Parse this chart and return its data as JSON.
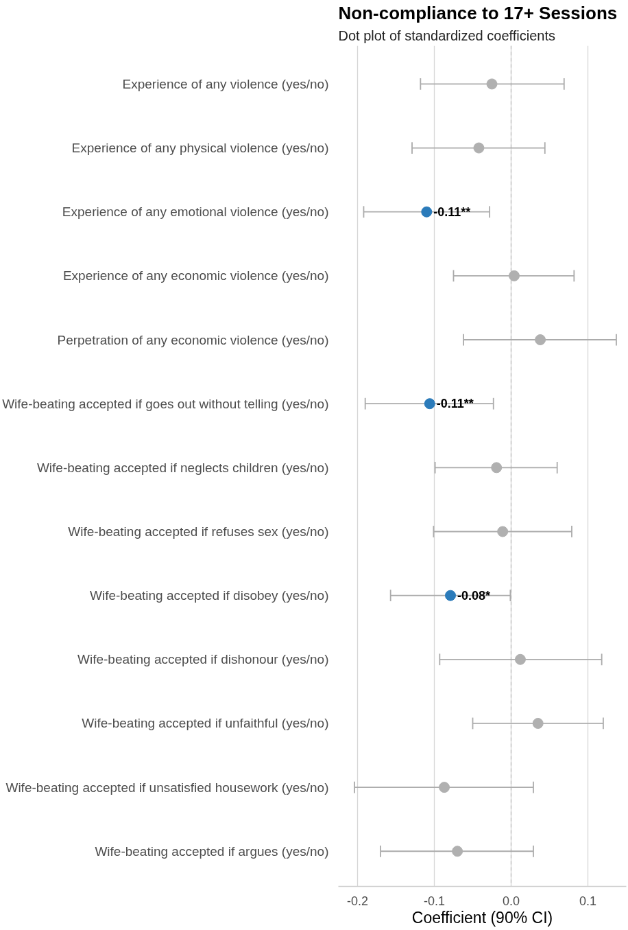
{
  "chart_data": {
    "type": "scatter",
    "orientation": "horizontal",
    "title": "Non-compliance to 17+ Sessions",
    "subtitle": "Dot plot of standardized coefficients",
    "xlabel": "Coefficient (90% CI)",
    "categories": [
      "Experience of any violence (yes/no)",
      "Experience of any physical violence (yes/no)",
      "Experience of any emotional violence (yes/no)",
      "Experience of any economic violence (yes/no)",
      "Perpetration of any economic violence (yes/no)",
      "Wife-beating accepted if goes out without telling (yes/no)",
      "Wife-beating accepted if neglects children (yes/no)",
      "Wife-beating accepted if refuses sex (yes/no)",
      "Wife-beating accepted if disobey (yes/no)",
      "Wife-beating accepted if dishonour (yes/no)",
      "Wife-beating accepted if unfaithful (yes/no)",
      "Wife-beating accepted if unsatisfied housework (yes/no)",
      "Wife-beating accepted if argues (yes/no)"
    ],
    "values": [
      -0.025,
      -0.042,
      -0.11,
      0.004,
      0.038,
      -0.106,
      -0.019,
      -0.011,
      -0.079,
      0.012,
      0.035,
      -0.087,
      -0.07
    ],
    "errors": [
      [
        -0.118,
        0.069
      ],
      [
        -0.129,
        0.044
      ],
      [
        -0.192,
        -0.028
      ],
      [
        -0.075,
        0.082
      ],
      [
        -0.062,
        0.137
      ],
      [
        -0.19,
        -0.023
      ],
      [
        -0.099,
        0.06
      ],
      [
        -0.101,
        0.079
      ],
      [
        -0.157,
        -0.001
      ],
      [
        -0.093,
        0.118
      ],
      [
        -0.05,
        0.12
      ],
      [
        -0.204,
        0.029
      ],
      [
        -0.17,
        0.029
      ]
    ],
    "colors": [
      "#b0b0b0",
      "#b0b0b0",
      "#2b7bba",
      "#b0b0b0",
      "#b0b0b0",
      "#2b7bba",
      "#b0b0b0",
      "#b0b0b0",
      "#2b7bba",
      "#b0b0b0",
      "#b0b0b0",
      "#b0b0b0",
      "#b0b0b0"
    ],
    "value_labels": [
      null,
      null,
      "-0.11**",
      null,
      null,
      "-0.11**",
      null,
      null,
      "-0.08*",
      null,
      null,
      null,
      null
    ],
    "xlim": [
      -0.225,
      0.15
    ],
    "xticks": [
      -0.2,
      -0.1,
      {
        "value": 0,
        "label": "0.0"
      },
      0.1
    ],
    "ref_lines": [
      {
        "axis": "x",
        "value": 0,
        "color": "#bdbdbd",
        "line_style": "dashed"
      }
    ],
    "grid": "x",
    "marker": "circle"
  }
}
